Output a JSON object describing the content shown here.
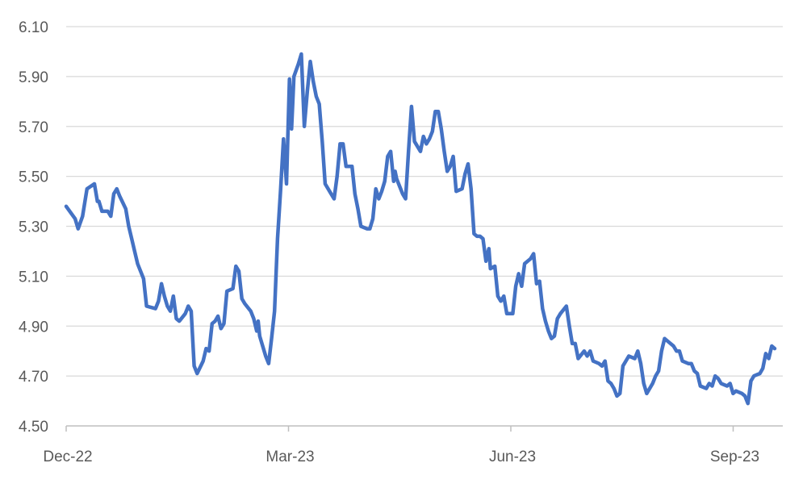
{
  "chart_data": {
    "type": "line",
    "title": "",
    "xlabel": "",
    "ylabel": "",
    "ylim": [
      4.5,
      6.1
    ],
    "ytick_labels": [
      "4.50",
      "4.70",
      "4.90",
      "5.10",
      "5.30",
      "5.50",
      "5.70",
      "5.90",
      "6.10"
    ],
    "xtick_labels": [
      "Dec-22",
      "Mar-23",
      "Jun-23",
      "Sep-23"
    ],
    "grid": true,
    "legend": "none",
    "colors": {
      "series": "#4472c4",
      "grid": "#d9d9d9",
      "axis": "#bfbfbf",
      "text": "#595959"
    },
    "series": [
      {
        "values": [
          [
            0,
            5.38
          ],
          [
            3,
            5.33
          ],
          [
            4,
            5.29
          ],
          [
            5.5,
            5.34
          ],
          [
            7,
            5.45
          ],
          [
            9.5,
            5.47
          ],
          [
            10.5,
            5.4
          ],
          [
            11,
            5.4
          ],
          [
            12,
            5.36
          ],
          [
            14,
            5.36
          ],
          [
            15,
            5.34
          ],
          [
            16,
            5.43
          ],
          [
            17,
            5.45
          ],
          [
            18,
            5.42
          ],
          [
            20,
            5.37
          ],
          [
            21,
            5.3
          ],
          [
            22,
            5.25
          ],
          [
            23,
            5.2
          ],
          [
            24,
            5.15
          ],
          [
            26,
            5.09
          ],
          [
            27,
            4.98
          ],
          [
            30,
            4.97
          ],
          [
            31,
            5.0
          ],
          [
            32,
            5.07
          ],
          [
            33,
            5.02
          ],
          [
            34,
            4.98
          ],
          [
            35,
            4.96
          ],
          [
            36,
            5.02
          ],
          [
            37,
            4.93
          ],
          [
            38,
            4.92
          ],
          [
            40,
            4.95
          ],
          [
            41,
            4.98
          ],
          [
            42,
            4.96
          ],
          [
            43,
            4.74
          ],
          [
            44,
            4.71
          ],
          [
            46,
            4.76
          ],
          [
            47,
            4.81
          ],
          [
            48,
            4.8
          ],
          [
            49,
            4.91
          ],
          [
            50,
            4.92
          ],
          [
            51,
            4.94
          ],
          [
            52,
            4.89
          ],
          [
            53,
            4.91
          ],
          [
            54,
            5.04
          ],
          [
            56,
            5.05
          ],
          [
            57,
            5.14
          ],
          [
            58,
            5.12
          ],
          [
            59,
            5.01
          ],
          [
            60,
            4.99
          ],
          [
            62,
            4.96
          ],
          [
            63,
            4.93
          ],
          [
            64,
            4.88
          ],
          [
            64.5,
            4.92
          ],
          [
            65,
            4.86
          ],
          [
            66,
            4.82
          ],
          [
            67,
            4.78
          ],
          [
            68,
            4.75
          ],
          [
            69,
            4.85
          ],
          [
            70,
            4.96
          ],
          [
            71,
            5.25
          ],
          [
            72,
            5.44
          ],
          [
            73,
            5.65
          ],
          [
            74,
            5.47
          ],
          [
            75,
            5.89
          ],
          [
            75.7,
            5.69
          ],
          [
            76.5,
            5.9
          ],
          [
            78,
            5.95
          ],
          [
            79,
            5.99
          ],
          [
            80,
            5.7
          ],
          [
            81,
            5.84
          ],
          [
            82,
            5.96
          ],
          [
            83,
            5.88
          ],
          [
            84,
            5.82
          ],
          [
            85,
            5.79
          ],
          [
            86,
            5.64
          ],
          [
            87,
            5.47
          ],
          [
            89,
            5.43
          ],
          [
            90,
            5.41
          ],
          [
            91,
            5.5
          ],
          [
            92,
            5.63
          ],
          [
            93,
            5.63
          ],
          [
            94,
            5.54
          ],
          [
            96,
            5.54
          ],
          [
            97,
            5.43
          ],
          [
            98,
            5.37
          ],
          [
            99,
            5.3
          ],
          [
            101,
            5.29
          ],
          [
            102,
            5.29
          ],
          [
            103,
            5.33
          ],
          [
            104,
            5.45
          ],
          [
            105,
            5.41
          ],
          [
            106,
            5.44
          ],
          [
            107,
            5.48
          ],
          [
            108,
            5.58
          ],
          [
            109,
            5.6
          ],
          [
            110,
            5.48
          ],
          [
            110.5,
            5.52
          ],
          [
            111,
            5.49
          ],
          [
            112,
            5.46
          ],
          [
            113,
            5.43
          ],
          [
            114,
            5.41
          ],
          [
            115,
            5.6
          ],
          [
            116,
            5.78
          ],
          [
            117,
            5.64
          ],
          [
            119,
            5.6
          ],
          [
            120,
            5.66
          ],
          [
            121,
            5.63
          ],
          [
            122,
            5.65
          ],
          [
            123,
            5.68
          ],
          [
            124,
            5.76
          ],
          [
            125,
            5.76
          ],
          [
            126,
            5.69
          ],
          [
            127,
            5.6
          ],
          [
            128,
            5.52
          ],
          [
            129,
            5.54
          ],
          [
            130,
            5.58
          ],
          [
            131,
            5.44
          ],
          [
            133,
            5.45
          ],
          [
            134,
            5.51
          ],
          [
            135,
            5.55
          ],
          [
            136,
            5.45
          ],
          [
            137,
            5.27
          ],
          [
            138,
            5.26
          ],
          [
            139,
            5.26
          ],
          [
            140,
            5.25
          ],
          [
            141,
            5.16
          ],
          [
            142,
            5.21
          ],
          [
            142.5,
            5.13
          ],
          [
            144,
            5.14
          ],
          [
            145,
            5.02
          ],
          [
            146,
            5.0
          ],
          [
            147,
            5.02
          ],
          [
            148,
            4.95
          ],
          [
            150,
            4.95
          ],
          [
            151,
            5.06
          ],
          [
            152,
            5.11
          ],
          [
            153,
            5.06
          ],
          [
            154,
            5.15
          ],
          [
            156,
            5.17
          ],
          [
            157,
            5.19
          ],
          [
            158,
            5.07
          ],
          [
            159,
            5.08
          ],
          [
            160,
            4.97
          ],
          [
            161,
            4.92
          ],
          [
            162,
            4.88
          ],
          [
            163,
            4.85
          ],
          [
            164,
            4.86
          ],
          [
            165,
            4.93
          ],
          [
            166,
            4.95
          ],
          [
            168,
            4.98
          ],
          [
            169,
            4.9
          ],
          [
            170,
            4.83
          ],
          [
            171,
            4.83
          ],
          [
            172,
            4.77
          ],
          [
            174,
            4.8
          ],
          [
            175,
            4.78
          ],
          [
            176,
            4.8
          ],
          [
            177,
            4.76
          ],
          [
            179,
            4.75
          ],
          [
            180,
            4.74
          ],
          [
            181,
            4.76
          ],
          [
            182,
            4.68
          ],
          [
            183,
            4.67
          ],
          [
            184,
            4.65
          ],
          [
            185,
            4.62
          ],
          [
            186,
            4.63
          ],
          [
            187,
            4.74
          ],
          [
            188,
            4.76
          ],
          [
            189,
            4.78
          ],
          [
            191,
            4.77
          ],
          [
            192,
            4.8
          ],
          [
            193,
            4.75
          ],
          [
            194,
            4.67
          ],
          [
            195,
            4.63
          ],
          [
            197,
            4.67
          ],
          [
            198,
            4.7
          ],
          [
            199,
            4.72
          ],
          [
            200,
            4.8
          ],
          [
            201,
            4.85
          ],
          [
            202,
            4.84
          ],
          [
            204,
            4.82
          ],
          [
            205,
            4.8
          ],
          [
            206,
            4.8
          ],
          [
            207,
            4.76
          ],
          [
            209,
            4.75
          ],
          [
            210,
            4.75
          ],
          [
            211,
            4.72
          ],
          [
            212,
            4.71
          ],
          [
            213,
            4.66
          ],
          [
            215,
            4.65
          ],
          [
            216,
            4.67
          ],
          [
            217,
            4.66
          ],
          [
            218,
            4.7
          ],
          [
            219,
            4.69
          ],
          [
            220,
            4.67
          ],
          [
            222,
            4.66
          ],
          [
            223,
            4.67
          ],
          [
            224,
            4.63
          ],
          [
            225,
            4.64
          ],
          [
            227,
            4.63
          ],
          [
            228,
            4.62
          ],
          [
            229,
            4.59
          ],
          [
            230,
            4.68
          ],
          [
            231,
            4.7
          ],
          [
            233,
            4.71
          ],
          [
            234,
            4.73
          ],
          [
            235,
            4.79
          ],
          [
            236,
            4.77
          ],
          [
            237,
            4.82
          ],
          [
            238,
            4.81
          ]
        ]
      }
    ]
  }
}
